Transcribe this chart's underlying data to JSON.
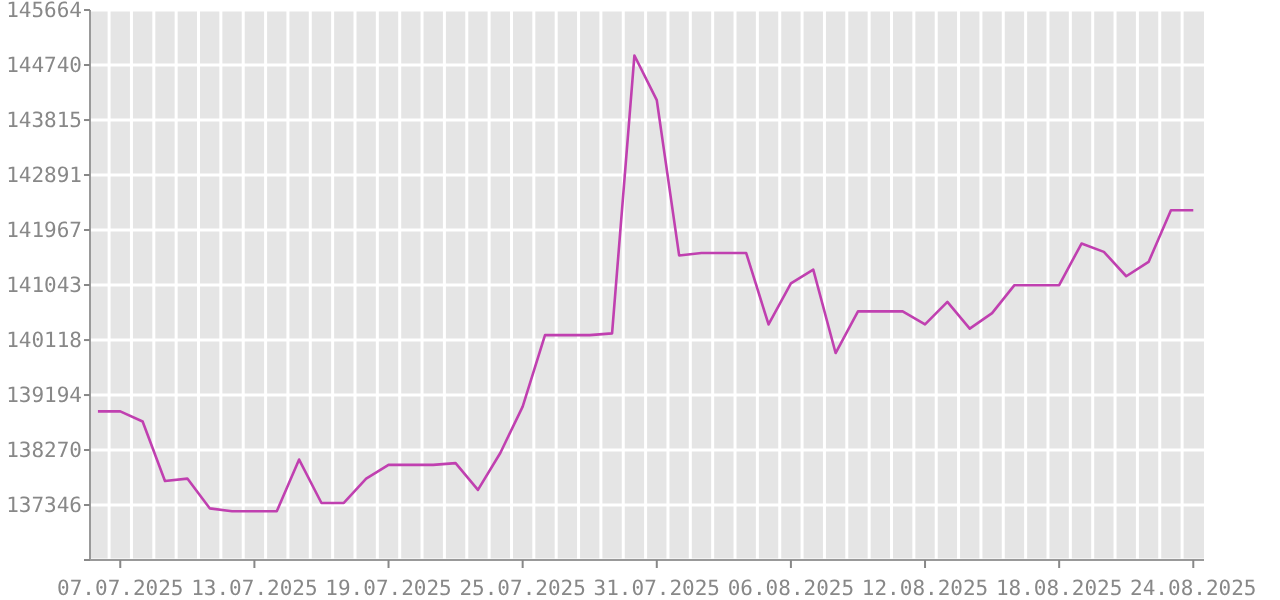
{
  "chart_data": {
    "type": "line",
    "x": [
      "2025-07-06",
      "2025-07-07",
      "2025-07-08",
      "2025-07-09",
      "2025-07-10",
      "2025-07-11",
      "2025-07-12",
      "2025-07-13",
      "2025-07-14",
      "2025-07-15",
      "2025-07-16",
      "2025-07-17",
      "2025-07-18",
      "2025-07-19",
      "2025-07-20",
      "2025-07-21",
      "2025-07-22",
      "2025-07-23",
      "2025-07-24",
      "2025-07-25",
      "2025-07-26",
      "2025-07-27",
      "2025-07-28",
      "2025-07-29",
      "2025-07-30",
      "2025-07-31",
      "2025-08-01",
      "2025-08-02",
      "2025-08-03",
      "2025-08-04",
      "2025-08-05",
      "2025-08-06",
      "2025-08-07",
      "2025-08-08",
      "2025-08-09",
      "2025-08-10",
      "2025-08-11",
      "2025-08-12",
      "2025-08-13",
      "2025-08-14",
      "2025-08-15",
      "2025-08-16",
      "2025-08-17",
      "2025-08-18",
      "2025-08-19",
      "2025-08-20",
      "2025-08-21",
      "2025-08-22",
      "2025-08-23",
      "2025-08-24"
    ],
    "series": [
      {
        "color": "#c040b0",
        "values": [
          138920,
          138920,
          138750,
          137750,
          137790,
          137290,
          137240,
          137240,
          137240,
          138110,
          137380,
          137380,
          137790,
          138020,
          138020,
          138020,
          138050,
          137600,
          138220,
          139000,
          140200,
          140200,
          140200,
          140230,
          144900,
          144150,
          141540,
          141580,
          141580,
          141580,
          140380,
          141070,
          141300,
          139900,
          140600,
          140600,
          140600,
          140380,
          140760,
          140310,
          140570,
          141040,
          141040,
          141040,
          141740,
          141600,
          141190,
          141430,
          142300,
          142300
        ]
      }
    ],
    "ylim": [
      136422,
      145664
    ],
    "yticks": [
      {
        "value": 136422,
        "label": null
      },
      137346,
      138270,
      139194,
      140118,
      141043,
      141967,
      142891,
      143815,
      144740,
      145664
    ],
    "xlim": [
      "2025-07-05T15:30",
      "2025-08-24T11:30"
    ],
    "xticks": [
      {
        "value": "2025-07-07",
        "label": "07.07.2025"
      },
      {
        "value": "2025-07-13",
        "label": "13.07.2025"
      },
      {
        "value": "2025-07-19",
        "label": "19.07.2025"
      },
      {
        "value": "2025-07-25",
        "label": "25.07.2025"
      },
      {
        "value": "2025-07-31",
        "label": "31.07.2025"
      },
      {
        "value": "2025-08-06",
        "label": "06.08.2025"
      },
      {
        "value": "2025-08-12",
        "label": "12.08.2025"
      },
      {
        "value": "2025-08-18",
        "label": "18.08.2025"
      },
      {
        "value": "2025-08-24",
        "label": "24.08.2025"
      }
    ],
    "grid": true,
    "marker": "none",
    "line_style": "solid"
  }
}
